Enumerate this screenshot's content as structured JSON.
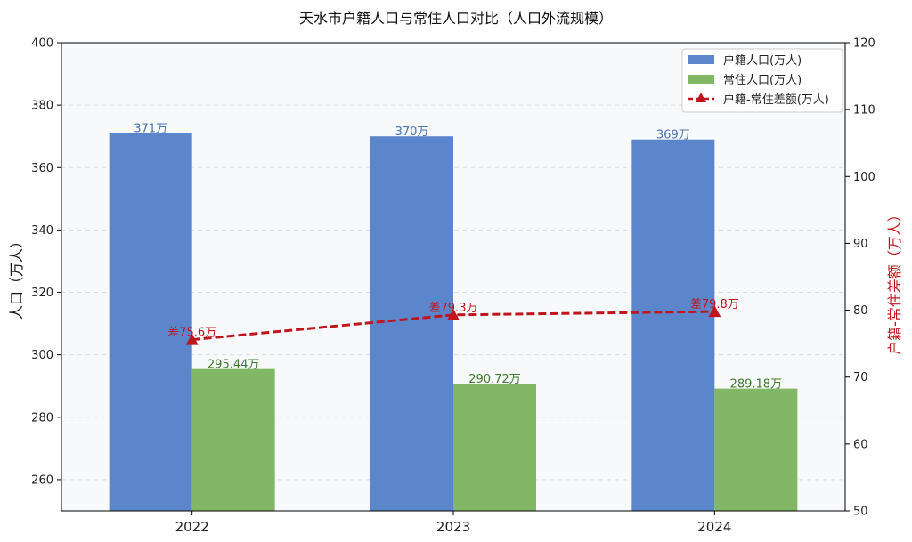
{
  "chart_data": {
    "type": "bar",
    "title": "天水市户籍人口与常住人口对比（人口外流规模）",
    "categories": [
      "2022",
      "2023",
      "2024"
    ],
    "series": [
      {
        "name": "户籍人口(万人)",
        "type": "bar",
        "axis": "left",
        "values": [
          371,
          370,
          369
        ],
        "labels": [
          "371万",
          "370万",
          "369万"
        ],
        "color": "#5b86cb"
      },
      {
        "name": "常住人口(万人)",
        "type": "bar",
        "axis": "left",
        "values": [
          295.44,
          290.72,
          289.18
        ],
        "labels": [
          "295.44万",
          "290.72万",
          "289.18万"
        ],
        "color": "#82b865"
      },
      {
        "name": "户籍-常住差额(万人)",
        "type": "line",
        "axis": "right",
        "values": [
          75.6,
          79.3,
          79.8
        ],
        "labels": [
          "差75.6万",
          "差79.3万",
          "差79.8万"
        ],
        "color": "#c0151c"
      }
    ],
    "ylabel": "人口（万人）",
    "y2label": "户籍-常住差额（万人）",
    "ylim": [
      250,
      400
    ],
    "y2lim": [
      50,
      120
    ],
    "yticks": [
      260,
      280,
      300,
      320,
      340,
      360,
      380,
      400
    ],
    "y2ticks": [
      50,
      60,
      70,
      80,
      90,
      100,
      110,
      120
    ],
    "grid": true,
    "legend_position": "top-right"
  }
}
